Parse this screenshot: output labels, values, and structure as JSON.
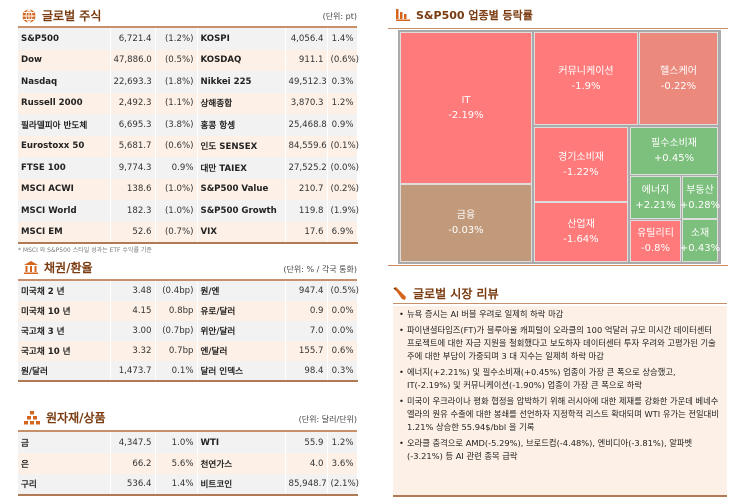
{
  "stocks": {
    "title": "글로벌 주식",
    "unit": "(단위: pt)",
    "icon": "globe-icon",
    "rows": [
      [
        "S&P500",
        "6,721.4",
        "(1.2%)",
        "KOSPI",
        "4,056.4",
        "1.4%"
      ],
      [
        "Dow",
        "47,886.0",
        "(0.5%)",
        "KOSDAQ",
        "911.1",
        "(0.6%)"
      ],
      [
        "Nasdaq",
        "22,693.3",
        "(1.8%)",
        "Nikkei 225",
        "49,512.3",
        "0.3%"
      ],
      [
        "Russell 2000",
        "2,492.3",
        "(1.1%)",
        "상해종합",
        "3,870.3",
        "1.2%"
      ],
      [
        "필라델피아 반도체",
        "6,695.3",
        "(3.8%)",
        "홍콩 항셍",
        "25,468.8",
        "0.9%"
      ],
      [
        "Eurostoxx 50",
        "5,681.7",
        "(0.6%)",
        "인도 SENSEX",
        "84,559.6",
        "(0.1%)"
      ],
      [
        "FTSE 100",
        "9,774.3",
        "0.9%",
        "대만 TAIEX",
        "27,525.2",
        "(0.0%)"
      ],
      [
        "MSCI ACWI",
        "138.6",
        "(1.0%)",
        "S&P500 Value",
        "210.7",
        "(0.2%)"
      ],
      [
        "MSCI World",
        "182.3",
        "(1.0%)",
        "S&P500 Growth",
        "119.8",
        "(1.9%)"
      ],
      [
        "MSCI EM",
        "52.6",
        "(0.7%)",
        "VIX",
        "17.6",
        "6.9%"
      ]
    ],
    "note": "* MSCI 와 S&P500 스타일 성과는 ETF 수익률 기준"
  },
  "bonds": {
    "title": "채권/환율",
    "unit": "(단위: % / 각국 통화)",
    "icon": "bank-icon",
    "rows": [
      [
        "미국채 2 년",
        "3.48",
        "(0.4bp)",
        "원/엔",
        "947.4",
        "(0.5%)"
      ],
      [
        "미국채 10 년",
        "4.15",
        "0.8bp",
        "유로/달러",
        "0.9",
        "0.0%"
      ],
      [
        "국고채 3 년",
        "3.00",
        "(0.7bp)",
        "위안/달러",
        "7.0",
        "0.0%"
      ],
      [
        "국고채 10 년",
        "3.32",
        "0.7bp",
        "엔/달러",
        "155.7",
        "0.6%"
      ],
      [
        "원/달러",
        "1,473.7",
        "0.1%",
        "달러 인덱스",
        "98.4",
        "0.3%"
      ]
    ]
  },
  "commodities": {
    "title": "원자재/상품",
    "unit": "(단위: 달러/단위)",
    "icon": "gold-bars-icon",
    "rows": [
      [
        "금",
        "4,347.5",
        "1.0%",
        "WTI",
        "55.9",
        "1.2%"
      ],
      [
        "은",
        "66.2",
        "5.6%",
        "천연가스",
        "4.0",
        "3.6%"
      ],
      [
        "구리",
        "536.4",
        "1.4%",
        "비트코인",
        "85,948.7",
        "(2.1%)"
      ]
    ]
  },
  "sectors": {
    "title": "S&P500 업종별 등락률",
    "icon": "bar-chart-icon"
  },
  "chart_data": {
    "type": "treemap",
    "items": [
      {
        "name": "IT",
        "label": "-2.19%",
        "value": -2.19
      },
      {
        "name": "금융",
        "label": "-0.03%",
        "value": -0.03
      },
      {
        "name": "커뮤니케이션",
        "label": "-1.9%",
        "value": -1.9
      },
      {
        "name": "헬스케어",
        "label": "-0.22%",
        "value": -0.22
      },
      {
        "name": "경기소비재",
        "label": "-1.22%",
        "value": -1.22
      },
      {
        "name": "산업재",
        "label": "-1.64%",
        "value": -1.64
      },
      {
        "name": "필수소비재",
        "label": "+0.45%",
        "value": 0.45
      },
      {
        "name": "에너지",
        "label": "+2.21%",
        "value": 2.21
      },
      {
        "name": "부동산",
        "label": "+0.28%",
        "value": 0.28
      },
      {
        "name": "유틸리티",
        "label": "-0.8%",
        "value": -0.8
      },
      {
        "name": "소재",
        "label": "+0.43%",
        "value": 0.43
      }
    ],
    "colors": {
      "down": "#ff7b7b",
      "slight_down": "#eb897d",
      "flat": "#c09a7b",
      "up": "#7dbf7d"
    }
  },
  "review": {
    "title": "글로벌 시장 리뷰",
    "icon": "pen-icon",
    "items": [
      "뉴욕 증시는 AI 버블 우려로 일제히 하락 마감",
      "파이낸셜타임즈(FT)가 블루아울 캐피털이 오라클의 100 억달러 규모 미시간 데이터센터 프로젝트에 대한 자금 지원을 철회했다고 보도하자 데이터센터 투자 우려와 고평가된 기술주에 대한 부담이 가중되며 3 대 지수는 일제히 하락 마감",
      "에너지(+2.21%) 및 필수소비재(+0.45%) 업종이 가장 큰 폭으로 상승했고, IT(-2.19%) 및 커뮤니케이션(-1.90%) 업종이 가장 큰 폭으로 하락",
      "미국이 우크라이나 평화 협정을 압박하기 위해 러시아에 대한 제재를 강화한 가운데 베네수엘라의 원유 수출에 대한 봉쇄를 선언하자 지정학적 리스트 확대되며 WTI 유가는 전일대비 1.21% 상승한 55.94$/bbl 을 기록",
      "오라클 충격으로 AMD(-5.29%), 브로드컴(-4.48%), 엔비디아(-3.81%), 알파벳(-3.21%) 등 AI 관련 종목 급락"
    ]
  },
  "accent": "#7a3b10"
}
